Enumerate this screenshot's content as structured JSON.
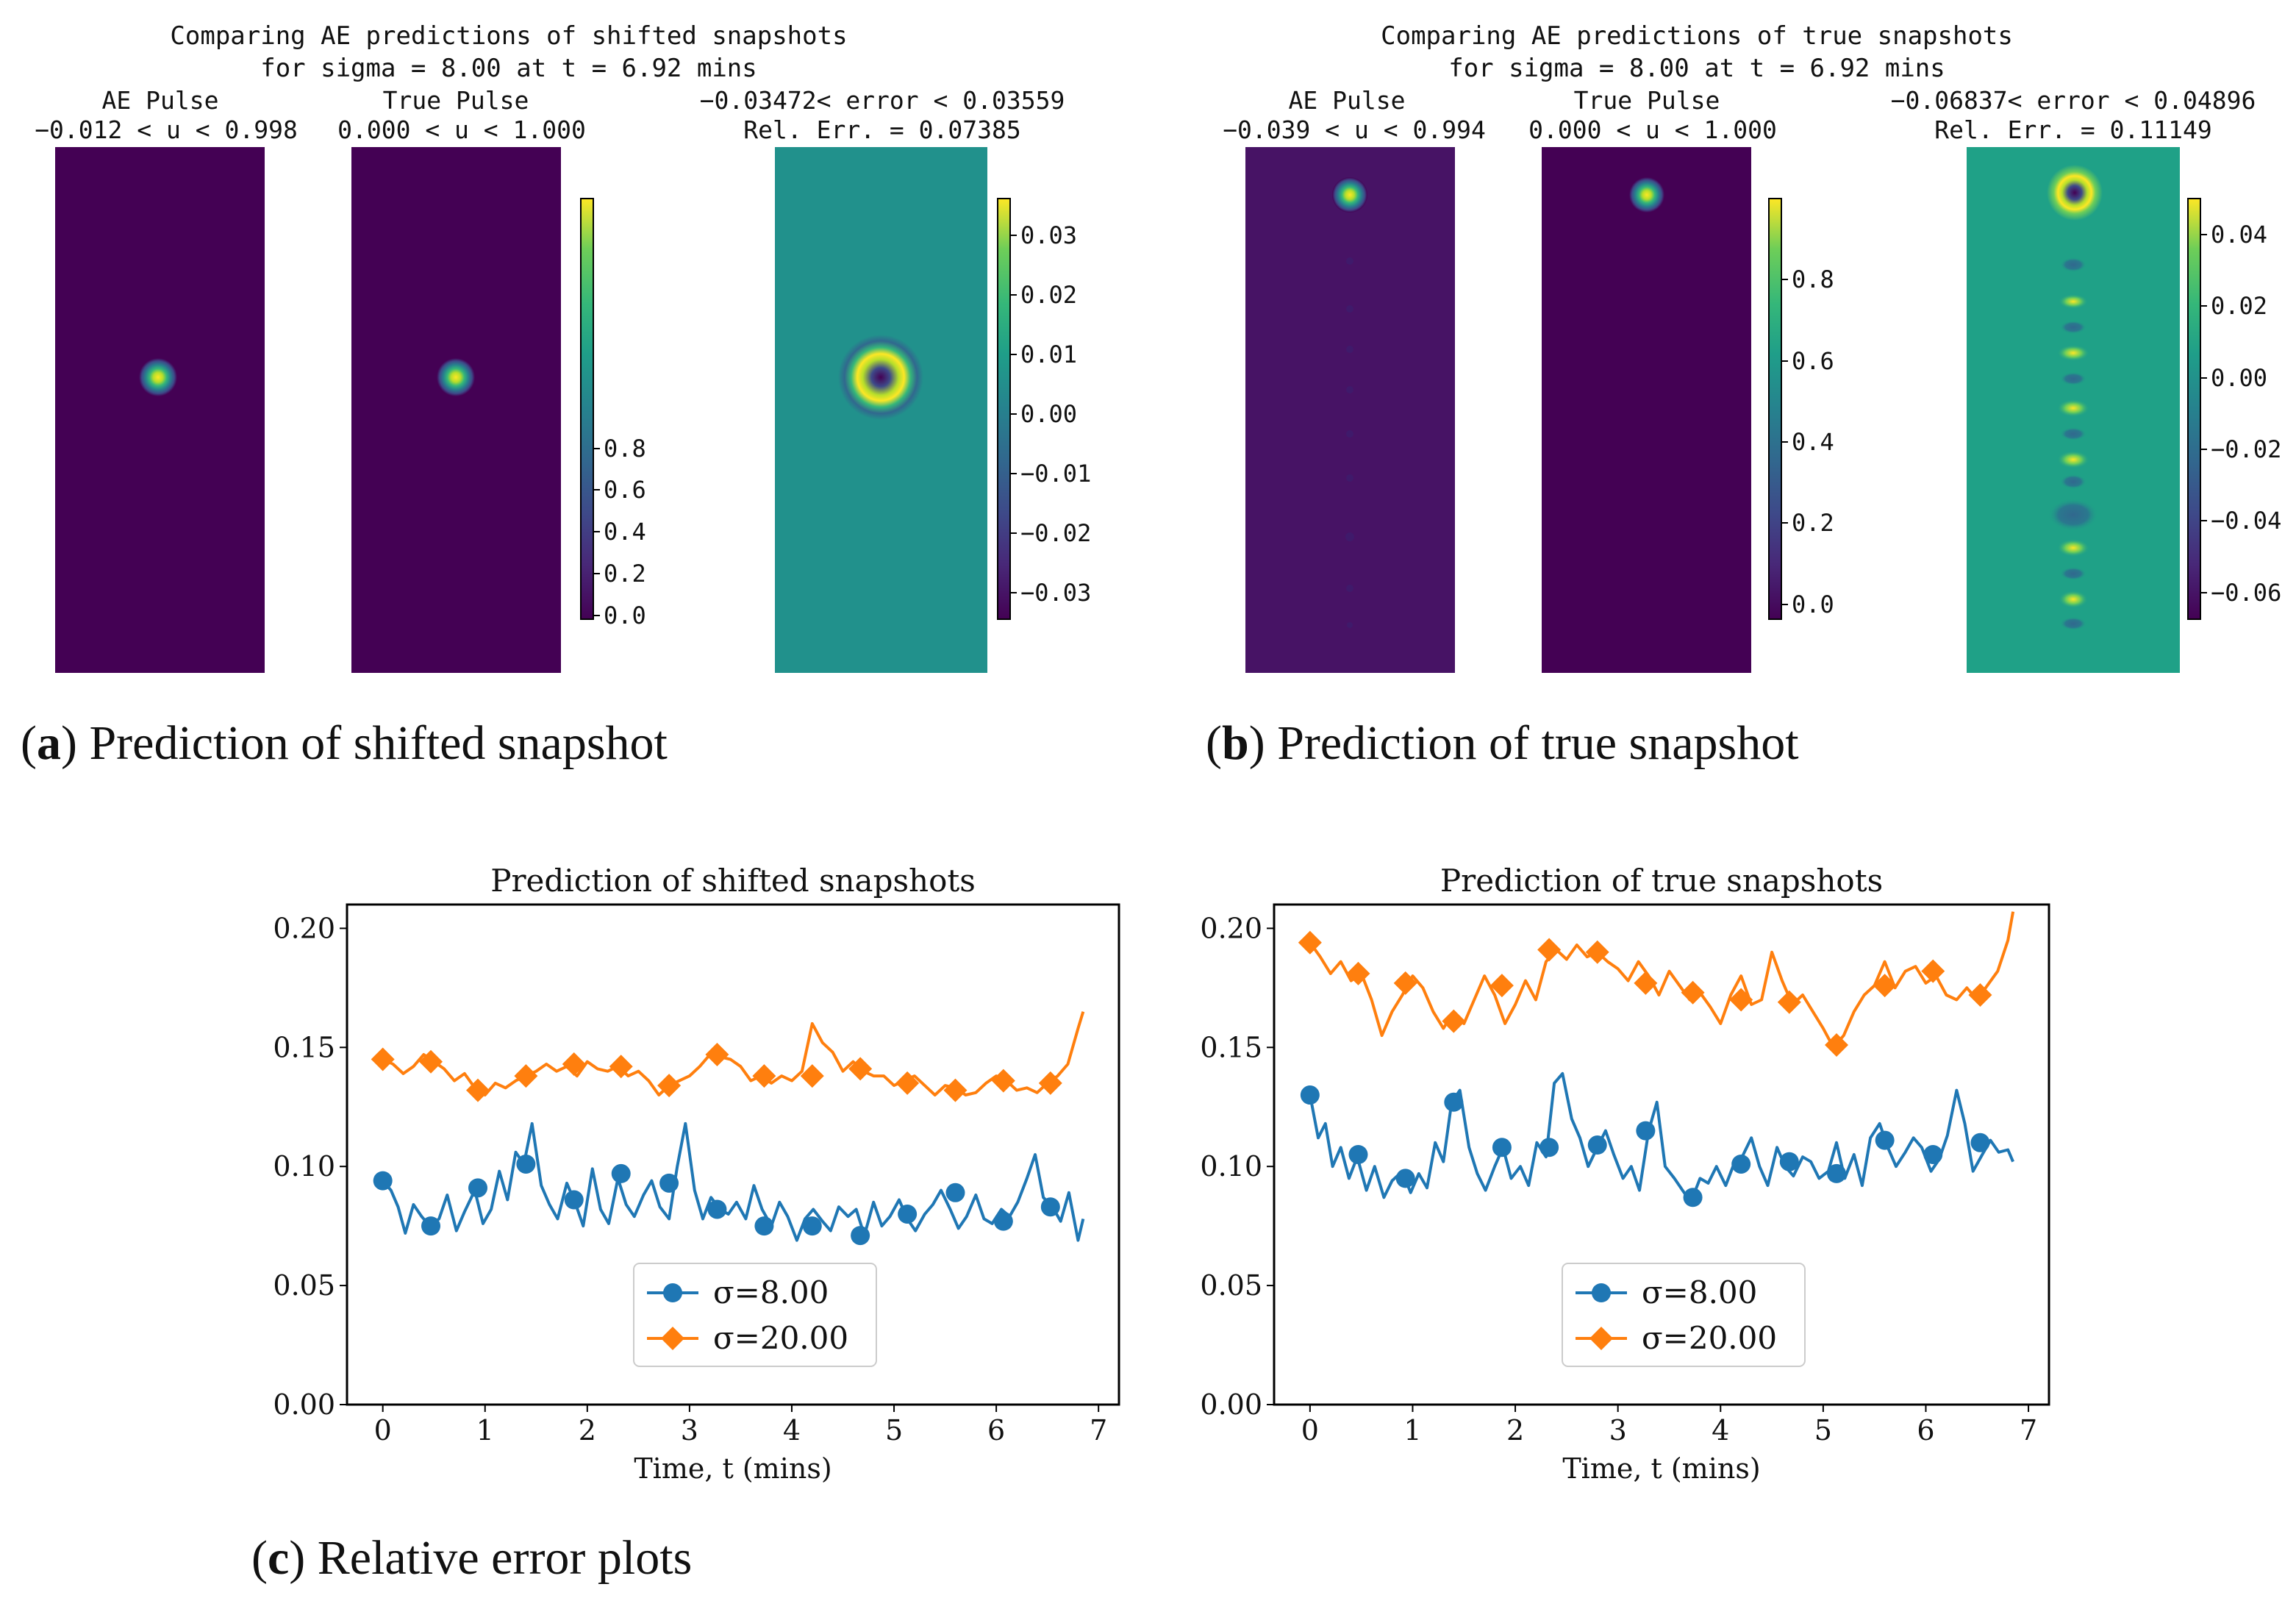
{
  "colors": {
    "blue": "#1f77b4",
    "orange": "#ff7f0e",
    "viridis_low": "#440154",
    "viridis_mid": "#21918c",
    "viridis_high": "#fde725"
  },
  "panel_a": {
    "title_line1": "Comparing AE predictions of shifted snapshots",
    "title_line2": "for sigma = 8.00 at t = 6.92 mins",
    "caption_label": "a",
    "caption_text": "Prediction of shifted snapshot",
    "ae": {
      "title": "AE Pulse",
      "range": "−0.012 < u < 0.998"
    },
    "true": {
      "title": "True Pulse",
      "range": "0.000 < u < 1.000"
    },
    "err": {
      "title": "−0.03472< error < 0.03559",
      "rel": "Rel. Err. = 0.07385"
    },
    "cbar_u_ticks": [
      "0.0",
      "0.2",
      "0.4",
      "0.6",
      "0.8"
    ],
    "cbar_err_ticks": [
      "−0.03",
      "−0.02",
      "−0.01",
      "0.00",
      "0.01",
      "0.02",
      "0.03"
    ]
  },
  "panel_b": {
    "title_line1": "Comparing AE predictions of true snapshots",
    "title_line2": "for sigma = 8.00 at t = 6.92 mins",
    "caption_label": "b",
    "caption_text": "Prediction of true snapshot",
    "ae": {
      "title": "AE Pulse",
      "range": "−0.039 < u < 0.994"
    },
    "true": {
      "title": "True Pulse",
      "range": "0.000 < u < 1.000"
    },
    "err": {
      "title": "−0.06837< error < 0.04896",
      "rel": "Rel. Err. = 0.11149"
    },
    "cbar_u_ticks": [
      "0.0",
      "0.2",
      "0.4",
      "0.6",
      "0.8"
    ],
    "cbar_err_ticks": [
      "−0.06",
      "−0.04",
      "−0.02",
      "0.00",
      "0.02",
      "0.04"
    ]
  },
  "panel_c": {
    "caption_label": "c",
    "caption_text": "Relative error plots"
  },
  "chart_data": [
    {
      "type": "line",
      "title": "Prediction of shifted snapshots",
      "xlabel": "Time, t (mins)",
      "ylabel": "",
      "xlim": [
        -0.35,
        7.2
      ],
      "ylim": [
        0.0,
        0.21
      ],
      "xticks": [
        "0",
        "1",
        "2",
        "3",
        "4",
        "5",
        "6",
        "7"
      ],
      "yticks": [
        "0.00",
        "0.05",
        "0.10",
        "0.15",
        "0.20"
      ],
      "legend": "bottom-center",
      "series": [
        {
          "name": "σ=8.00",
          "color": "#1f77b4",
          "marker": "circle",
          "x": [
            0,
            0.08,
            0.15,
            0.22,
            0.3,
            0.38,
            0.46,
            0.55,
            0.63,
            0.72,
            0.8,
            0.9,
            0.98,
            1.06,
            1.14,
            1.22,
            1.3,
            1.38,
            1.46,
            1.55,
            1.63,
            1.71,
            1.8,
            1.88,
            1.96,
            2.05,
            2.13,
            2.21,
            2.3,
            2.38,
            2.46,
            2.55,
            2.63,
            2.71,
            2.8,
            2.88,
            2.96,
            3.05,
            3.13,
            3.21,
            3.3,
            3.38,
            3.46,
            3.55,
            3.63,
            3.71,
            3.8,
            3.88,
            3.96,
            4.05,
            4.13,
            4.21,
            4.3,
            4.38,
            4.46,
            4.55,
            4.63,
            4.71,
            4.8,
            4.88,
            4.96,
            5.05,
            5.13,
            5.21,
            5.3,
            5.38,
            5.46,
            5.55,
            5.63,
            5.71,
            5.8,
            5.88,
            5.96,
            6.05,
            6.13,
            6.21,
            6.3,
            6.38,
            6.46,
            6.55,
            6.63,
            6.71,
            6.8,
            6.85
          ],
          "y": [
            0.094,
            0.09,
            0.083,
            0.072,
            0.084,
            0.079,
            0.075,
            0.078,
            0.088,
            0.073,
            0.081,
            0.09,
            0.076,
            0.082,
            0.098,
            0.086,
            0.106,
            0.101,
            0.118,
            0.092,
            0.084,
            0.078,
            0.093,
            0.085,
            0.075,
            0.099,
            0.082,
            0.076,
            0.095,
            0.084,
            0.079,
            0.088,
            0.094,
            0.083,
            0.078,
            0.1,
            0.118,
            0.09,
            0.078,
            0.087,
            0.082,
            0.08,
            0.085,
            0.078,
            0.092,
            0.082,
            0.075,
            0.085,
            0.079,
            0.069,
            0.078,
            0.082,
            0.077,
            0.073,
            0.083,
            0.079,
            0.082,
            0.071,
            0.085,
            0.075,
            0.079,
            0.086,
            0.078,
            0.073,
            0.08,
            0.084,
            0.09,
            0.082,
            0.074,
            0.079,
            0.088,
            0.078,
            0.076,
            0.082,
            0.079,
            0.085,
            0.095,
            0.105,
            0.087,
            0.083,
            0.077,
            0.089,
            0.069,
            0.078
          ],
          "markers_x": [
            0,
            0.47,
            0.93,
            1.4,
            1.87,
            2.33,
            2.8,
            3.27,
            3.73,
            4.2,
            4.67,
            5.13,
            5.6,
            6.07,
            6.53
          ],
          "markers_y": [
            0.094,
            0.075,
            0.091,
            0.101,
            0.086,
            0.097,
            0.093,
            0.082,
            0.075,
            0.075,
            0.071,
            0.08,
            0.089,
            0.077,
            0.083
          ]
        },
        {
          "name": "σ=20.00",
          "color": "#ff7f0e",
          "marker": "diamond",
          "x": [
            0,
            0.1,
            0.2,
            0.3,
            0.4,
            0.5,
            0.6,
            0.7,
            0.8,
            0.9,
            1.0,
            1.1,
            1.2,
            1.3,
            1.4,
            1.5,
            1.6,
            1.7,
            1.8,
            1.9,
            2.0,
            2.1,
            2.2,
            2.3,
            2.4,
            2.5,
            2.6,
            2.7,
            2.8,
            2.9,
            3.0,
            3.1,
            3.2,
            3.3,
            3.4,
            3.5,
            3.6,
            3.7,
            3.8,
            3.9,
            4.0,
            4.1,
            4.2,
            4.3,
            4.4,
            4.5,
            4.6,
            4.7,
            4.8,
            4.9,
            5.0,
            5.1,
            5.2,
            5.3,
            5.4,
            5.5,
            5.6,
            5.7,
            5.8,
            5.9,
            6.0,
            6.1,
            6.2,
            6.3,
            6.4,
            6.5,
            6.6,
            6.7,
            6.8,
            6.85
          ],
          "y": [
            0.145,
            0.143,
            0.139,
            0.142,
            0.147,
            0.144,
            0.141,
            0.136,
            0.139,
            0.133,
            0.13,
            0.135,
            0.133,
            0.136,
            0.138,
            0.14,
            0.143,
            0.14,
            0.142,
            0.138,
            0.144,
            0.141,
            0.14,
            0.142,
            0.138,
            0.14,
            0.136,
            0.13,
            0.134,
            0.136,
            0.138,
            0.142,
            0.147,
            0.146,
            0.145,
            0.142,
            0.136,
            0.138,
            0.135,
            0.138,
            0.136,
            0.14,
            0.16,
            0.152,
            0.148,
            0.14,
            0.144,
            0.14,
            0.138,
            0.138,
            0.134,
            0.136,
            0.138,
            0.134,
            0.13,
            0.134,
            0.133,
            0.13,
            0.131,
            0.135,
            0.138,
            0.136,
            0.132,
            0.133,
            0.131,
            0.135,
            0.138,
            0.143,
            0.158,
            0.165
          ],
          "markers_x": [
            0,
            0.47,
            0.93,
            1.4,
            1.87,
            2.33,
            2.8,
            3.27,
            3.73,
            4.2,
            4.67,
            5.13,
            5.6,
            6.07,
            6.53
          ],
          "markers_y": [
            0.145,
            0.144,
            0.132,
            0.138,
            0.143,
            0.142,
            0.134,
            0.147,
            0.138,
            0.138,
            0.141,
            0.135,
            0.132,
            0.136,
            0.135
          ]
        }
      ]
    },
    {
      "type": "line",
      "title": "Prediction of true snapshots",
      "xlabel": "Time, t (mins)",
      "ylabel": "",
      "xlim": [
        -0.35,
        7.2
      ],
      "ylim": [
        0.0,
        0.21
      ],
      "xticks": [
        "0",
        "1",
        "2",
        "3",
        "4",
        "5",
        "6",
        "7"
      ],
      "yticks": [
        "0.00",
        "0.05",
        "0.10",
        "0.15",
        "0.20"
      ],
      "legend": "bottom-center",
      "series": [
        {
          "name": "σ=8.00",
          "color": "#1f77b4",
          "marker": "circle",
          "x": [
            0,
            0.08,
            0.15,
            0.22,
            0.3,
            0.38,
            0.46,
            0.55,
            0.63,
            0.72,
            0.8,
            0.9,
            0.98,
            1.06,
            1.14,
            1.22,
            1.3,
            1.38,
            1.46,
            1.55,
            1.63,
            1.71,
            1.8,
            1.88,
            1.96,
            2.05,
            2.13,
            2.21,
            2.3,
            2.38,
            2.46,
            2.55,
            2.63,
            2.71,
            2.8,
            2.88,
            2.96,
            3.05,
            3.13,
            3.21,
            3.3,
            3.38,
            3.46,
            3.55,
            3.63,
            3.71,
            3.8,
            3.88,
            3.96,
            4.05,
            4.13,
            4.21,
            4.3,
            4.38,
            4.46,
            4.55,
            4.63,
            4.71,
            4.8,
            4.88,
            4.96,
            5.05,
            5.13,
            5.21,
            5.3,
            5.38,
            5.46,
            5.55,
            5.63,
            5.71,
            5.8,
            5.88,
            5.96,
            6.05,
            6.13,
            6.21,
            6.3,
            6.38,
            6.46,
            6.55,
            6.63,
            6.71,
            6.8,
            6.85
          ],
          "y": [
            0.13,
            0.112,
            0.118,
            0.1,
            0.108,
            0.095,
            0.104,
            0.09,
            0.1,
            0.087,
            0.094,
            0.098,
            0.089,
            0.097,
            0.091,
            0.11,
            0.102,
            0.127,
            0.132,
            0.108,
            0.097,
            0.09,
            0.1,
            0.108,
            0.095,
            0.1,
            0.092,
            0.11,
            0.104,
            0.135,
            0.139,
            0.12,
            0.112,
            0.1,
            0.108,
            0.115,
            0.105,
            0.095,
            0.1,
            0.09,
            0.115,
            0.127,
            0.1,
            0.095,
            0.09,
            0.085,
            0.095,
            0.093,
            0.1,
            0.092,
            0.101,
            0.104,
            0.112,
            0.1,
            0.092,
            0.108,
            0.1,
            0.096,
            0.104,
            0.102,
            0.095,
            0.098,
            0.11,
            0.095,
            0.105,
            0.092,
            0.112,
            0.118,
            0.108,
            0.1,
            0.106,
            0.112,
            0.108,
            0.098,
            0.103,
            0.113,
            0.132,
            0.118,
            0.098,
            0.105,
            0.111,
            0.106,
            0.107,
            0.102
          ],
          "markers_x": [
            0,
            0.47,
            0.93,
            1.4,
            1.87,
            2.33,
            2.8,
            3.27,
            3.73,
            4.2,
            4.67,
            5.13,
            5.6,
            6.07,
            6.53
          ],
          "markers_y": [
            0.13,
            0.105,
            0.095,
            0.127,
            0.108,
            0.108,
            0.109,
            0.115,
            0.087,
            0.101,
            0.102,
            0.097,
            0.111,
            0.105,
            0.11
          ]
        },
        {
          "name": "σ=20.00",
          "color": "#ff7f0e",
          "marker": "diamond",
          "x": [
            0,
            0.1,
            0.2,
            0.3,
            0.4,
            0.5,
            0.6,
            0.7,
            0.8,
            0.9,
            1.0,
            1.1,
            1.2,
            1.3,
            1.4,
            1.5,
            1.6,
            1.7,
            1.8,
            1.9,
            2.0,
            2.1,
            2.2,
            2.3,
            2.4,
            2.5,
            2.6,
            2.7,
            2.8,
            2.9,
            3.0,
            3.1,
            3.2,
            3.3,
            3.4,
            3.5,
            3.6,
            3.7,
            3.8,
            3.9,
            4.0,
            4.1,
            4.2,
            4.3,
            4.4,
            4.5,
            4.6,
            4.7,
            4.8,
            4.9,
            5.0,
            5.1,
            5.2,
            5.3,
            5.4,
            5.5,
            5.6,
            5.7,
            5.8,
            5.9,
            6.0,
            6.1,
            6.2,
            6.3,
            6.4,
            6.5,
            6.6,
            6.7,
            6.8,
            6.85
          ],
          "y": [
            0.194,
            0.188,
            0.181,
            0.186,
            0.178,
            0.181,
            0.17,
            0.155,
            0.165,
            0.172,
            0.18,
            0.175,
            0.165,
            0.158,
            0.165,
            0.16,
            0.17,
            0.18,
            0.172,
            0.16,
            0.168,
            0.178,
            0.17,
            0.186,
            0.191,
            0.187,
            0.193,
            0.188,
            0.19,
            0.186,
            0.183,
            0.178,
            0.186,
            0.18,
            0.172,
            0.182,
            0.176,
            0.17,
            0.173,
            0.167,
            0.16,
            0.172,
            0.18,
            0.168,
            0.17,
            0.19,
            0.178,
            0.168,
            0.172,
            0.165,
            0.158,
            0.15,
            0.155,
            0.165,
            0.172,
            0.176,
            0.186,
            0.175,
            0.182,
            0.184,
            0.177,
            0.18,
            0.172,
            0.17,
            0.175,
            0.17,
            0.176,
            0.182,
            0.195,
            0.207
          ],
          "markers_x": [
            0,
            0.47,
            0.93,
            1.4,
            1.87,
            2.33,
            2.8,
            3.27,
            3.73,
            4.2,
            4.67,
            5.13,
            5.6,
            6.07,
            6.53
          ],
          "markers_y": [
            0.194,
            0.181,
            0.177,
            0.161,
            0.176,
            0.191,
            0.19,
            0.177,
            0.173,
            0.17,
            0.169,
            0.151,
            0.176,
            0.182,
            0.172
          ]
        }
      ]
    }
  ]
}
